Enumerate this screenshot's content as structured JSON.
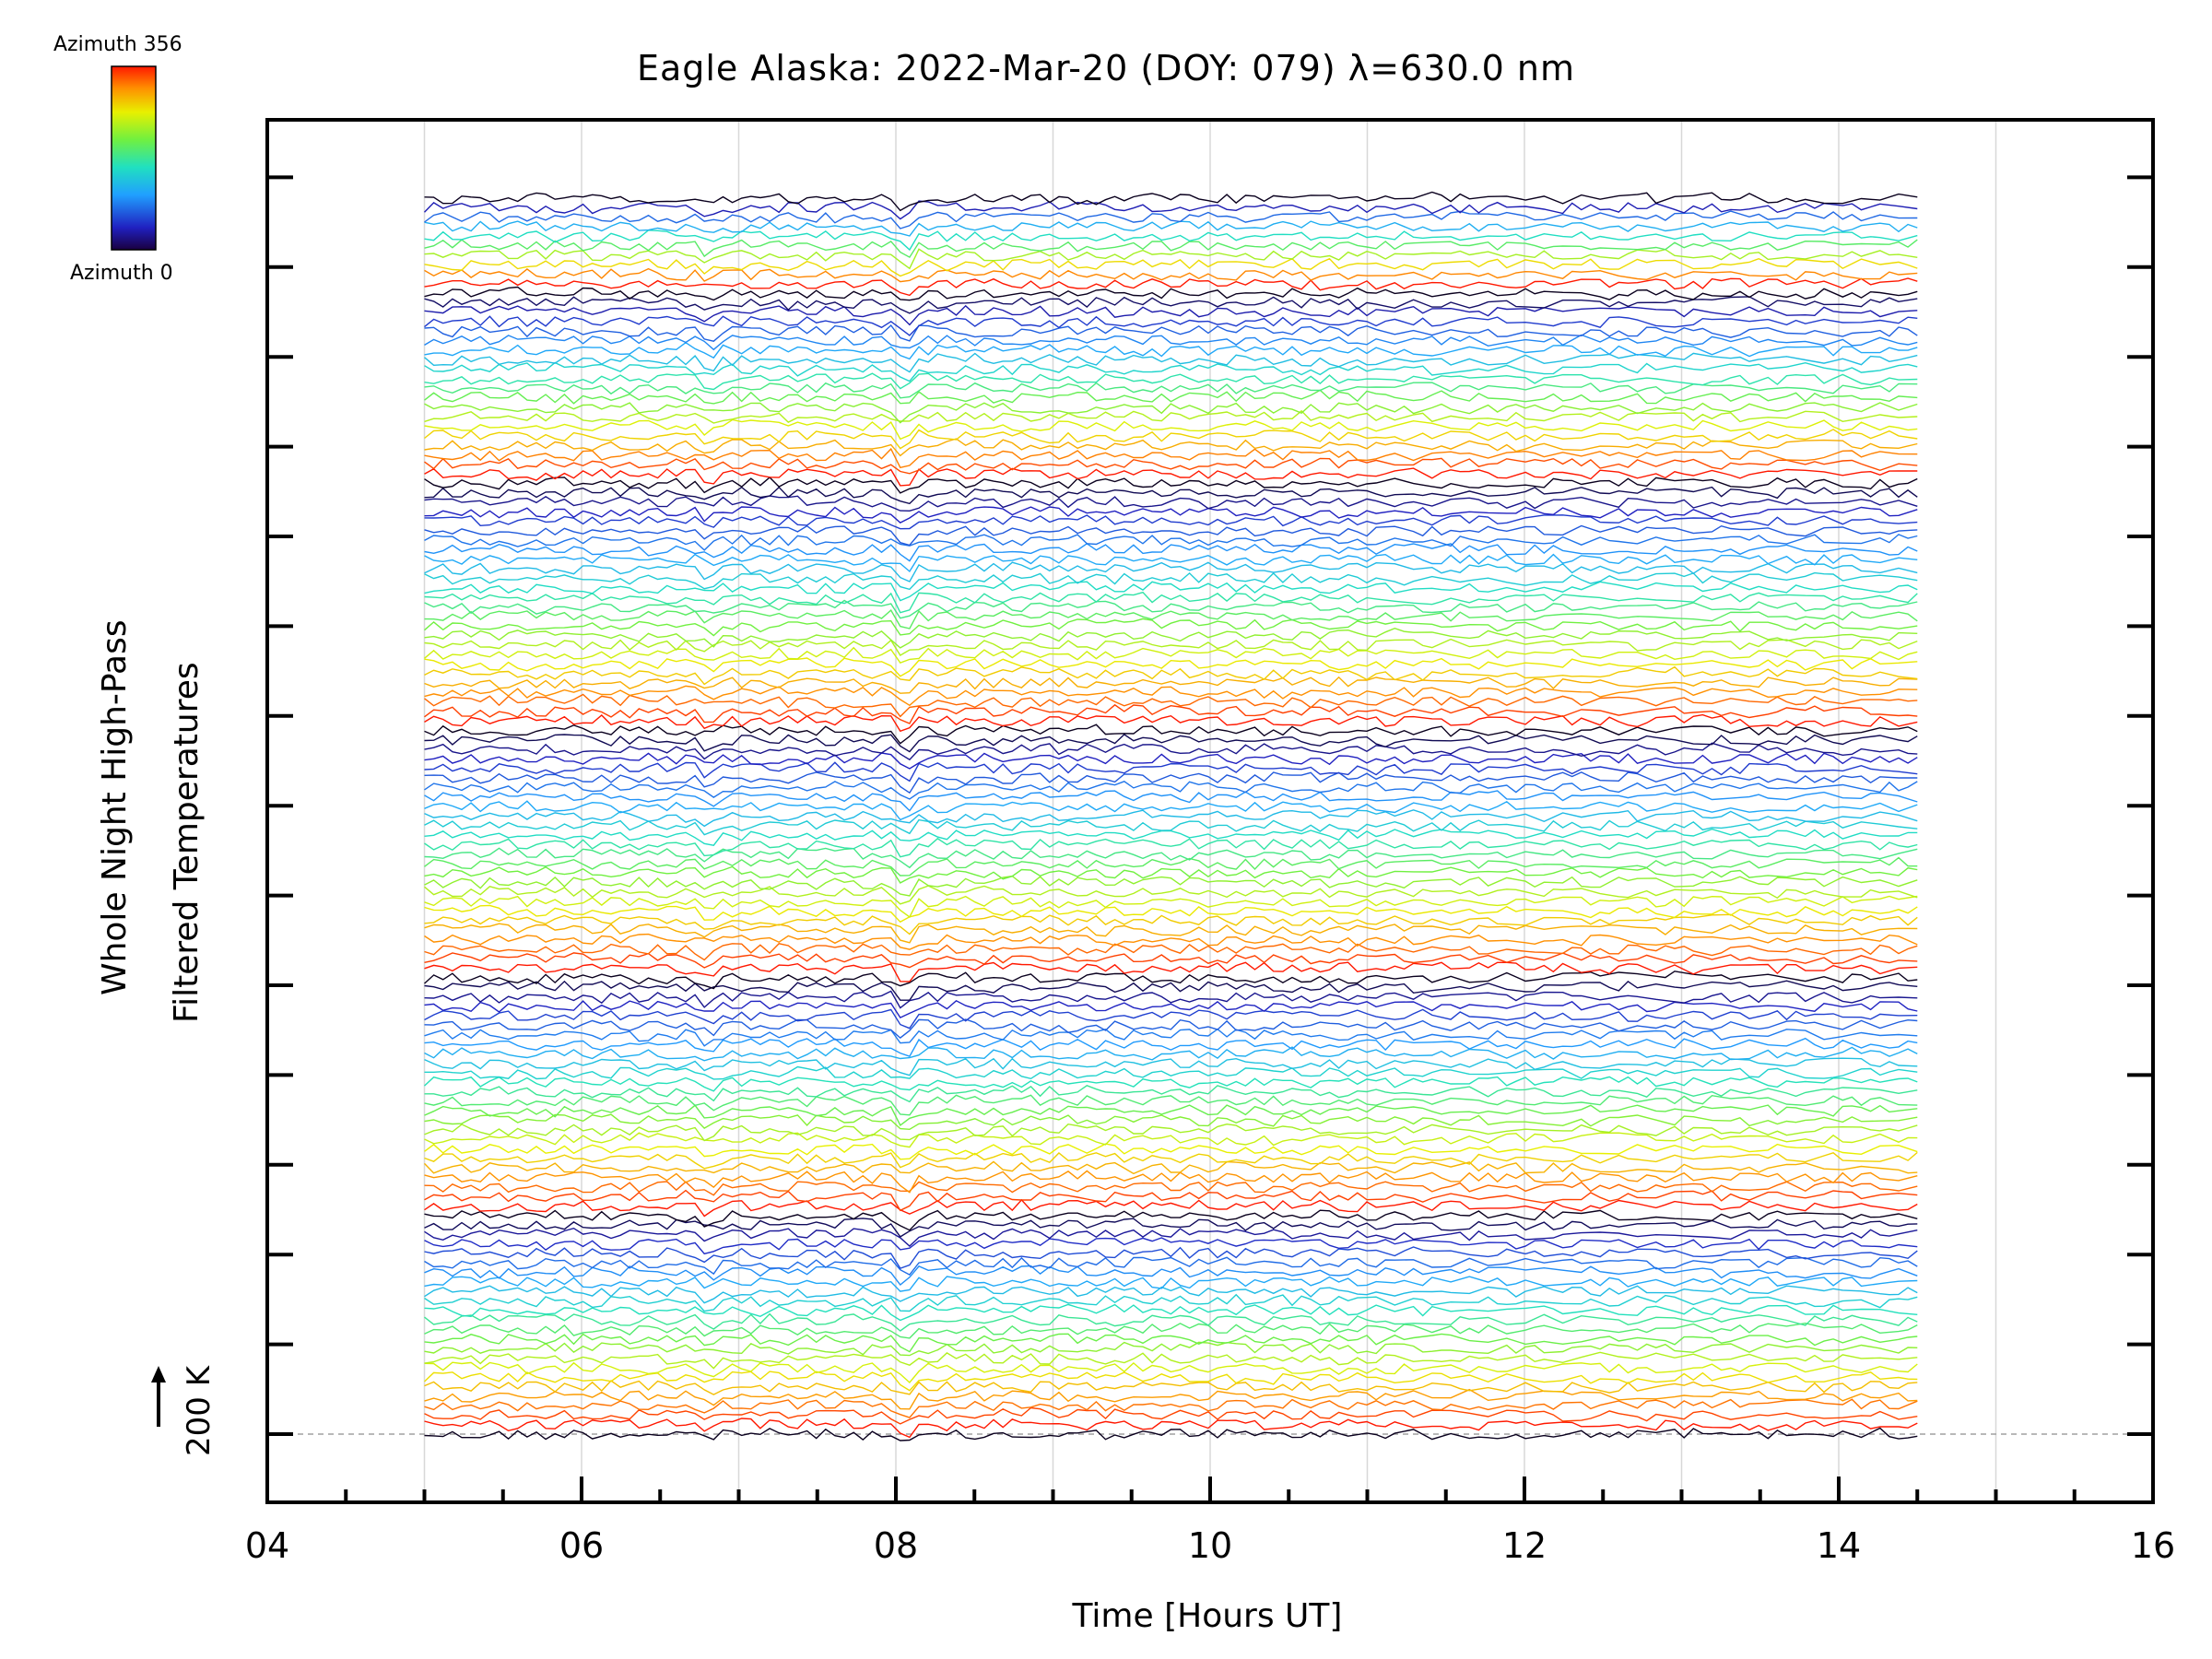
{
  "colorbar": {
    "top_label": "Azimuth 356",
    "bottom_label": "Azimuth 0"
  },
  "chart_data": {
    "type": "line",
    "title": "Eagle Alaska: 2022-Mar-20 (DOY: 079) λ=630.0 nm",
    "xlabel": "Time [Hours UT]",
    "ylabel_line1": "Whole Night High-Pass",
    "ylabel_line2": "Filtered Temperatures",
    "xlim": [
      4,
      16
    ],
    "x_ticks": [
      "04",
      "06",
      "08",
      "10",
      "12",
      "14",
      "16"
    ],
    "grid": "vertical lines every 1 hour",
    "y_scale_label": "200 K",
    "y_scale_arrow": "up",
    "x_start": 5.0,
    "x_end": 14.5,
    "n_series": 131,
    "series_color_by": "azimuth, rainbow scale from 0 (dark blue/black) to 356 (red)",
    "note_values": "high-pass filtered temperature traces vertically stacked; individual point values not legible"
  }
}
